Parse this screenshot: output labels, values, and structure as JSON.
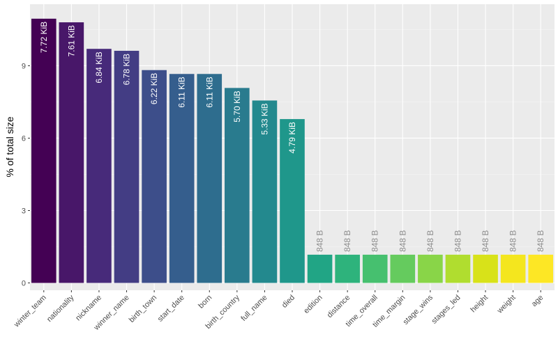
{
  "chart_data": {
    "type": "bar",
    "title": "",
    "xlabel": "",
    "ylabel": "% of total size",
    "ylim": [
      0,
      11.3
    ],
    "yticks": [
      0,
      3,
      6,
      9
    ],
    "grid": true,
    "legend": "none",
    "categories": [
      "winter_team",
      "nationality",
      "nickname",
      "winner_name",
      "birth_town",
      "start_date",
      "born",
      "birth_country",
      "full_name",
      "died",
      "edition",
      "distance",
      "time_overall",
      "time_margin",
      "stage_wins",
      "stages_led",
      "height",
      "weight",
      "age"
    ],
    "values": [
      10.95,
      10.8,
      9.7,
      9.62,
      8.82,
      8.66,
      8.66,
      8.08,
      7.56,
      6.79,
      1.17,
      1.17,
      1.17,
      1.17,
      1.17,
      1.17,
      1.17,
      1.17,
      1.17
    ],
    "labels": [
      "7.72 KiB",
      "7.61 KiB",
      "6.84 KiB",
      "6.78 KiB",
      "6.22 KiB",
      "6.11 KiB",
      "6.11 KiB",
      "5.70 KiB",
      "5.33 KiB",
      "4.79 KiB",
      "848 B",
      "848 B",
      "848 B",
      "848 B",
      "848 B",
      "848 B",
      "848 B",
      "848 B",
      "848 B"
    ],
    "colors": [
      "#440154",
      "#481769",
      "#472A7A",
      "#433D84",
      "#3D4E8A",
      "#355E8D",
      "#2E6D8E",
      "#297B8E",
      "#23898E",
      "#1F978B",
      "#21A585",
      "#2EB37C",
      "#46C06F",
      "#65CB5E",
      "#89D548",
      "#B0DD2F",
      "#D8E219",
      "#F4E61E",
      "#FDE725"
    ]
  }
}
